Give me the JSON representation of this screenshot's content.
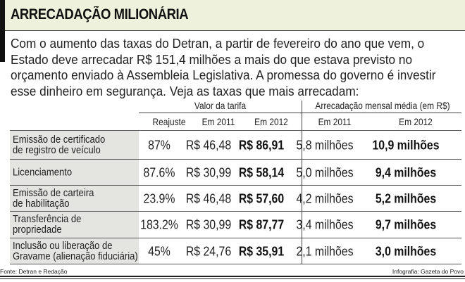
{
  "title": "ARRECADAÇÃO MILIONÁRIA",
  "intro": [
    "Com o aumento das taxas do Detran, a partir de fevereiro do ano que vem, o",
    "Estado deve arrecadar R$ 151,4 milhões a mais do que estava previsto no",
    "orçamento enviado à Assembleia Legislativa. A promessa do governo é investir",
    "esse dinheiro em segurança. Veja as taxas que mais arrecadam:"
  ],
  "table": {
    "groups": [
      "Valor da tarifa",
      "Arrecadação mensal média (em R$)"
    ],
    "columns": [
      "Reajuste",
      "Em 2011",
      "Em 2012",
      "Em 2011",
      "Em 2012"
    ],
    "rows": [
      {
        "label": [
          "Emissão de certificado",
          "de registro de veículo"
        ],
        "values": [
          "87%",
          "R$ 46,48",
          "R$ 86,91",
          "5,8 milhões",
          "10,9 milhões"
        ]
      },
      {
        "label": [
          "Licenciamento"
        ],
        "values": [
          "87.6%",
          "R$ 30,99",
          "R$ 58,14",
          "5,0 milhões",
          "9,4 milhões"
        ]
      },
      {
        "label": [
          "Emissão de carteira",
          "de habilitação"
        ],
        "values": [
          "23.9%",
          "R$ 46,48",
          "R$ 57,60",
          "4,2 milhões",
          "5,2 milhões"
        ]
      },
      {
        "label": [
          "Transferência de",
          "propriedade"
        ],
        "values": [
          "183.2%",
          "R$ 30,99",
          "R$ 87,77",
          "3,4 milhões",
          "9,7 milhões"
        ]
      },
      {
        "label": [
          "Inclusão ou liberação de",
          "Gravame (alienação fiduciária)"
        ],
        "values": [
          "45%",
          "R$ 24,76",
          "R$ 35,91",
          "2,1 milhões",
          "3,0 milhões"
        ]
      }
    ]
  },
  "footer": {
    "source": "Fonte: Detran e Redação",
    "credit": "Infografia: Gazeta do Povo"
  },
  "colors": {
    "title_bg": "#eef1dc",
    "label_bg": "#e4e5e1"
  }
}
